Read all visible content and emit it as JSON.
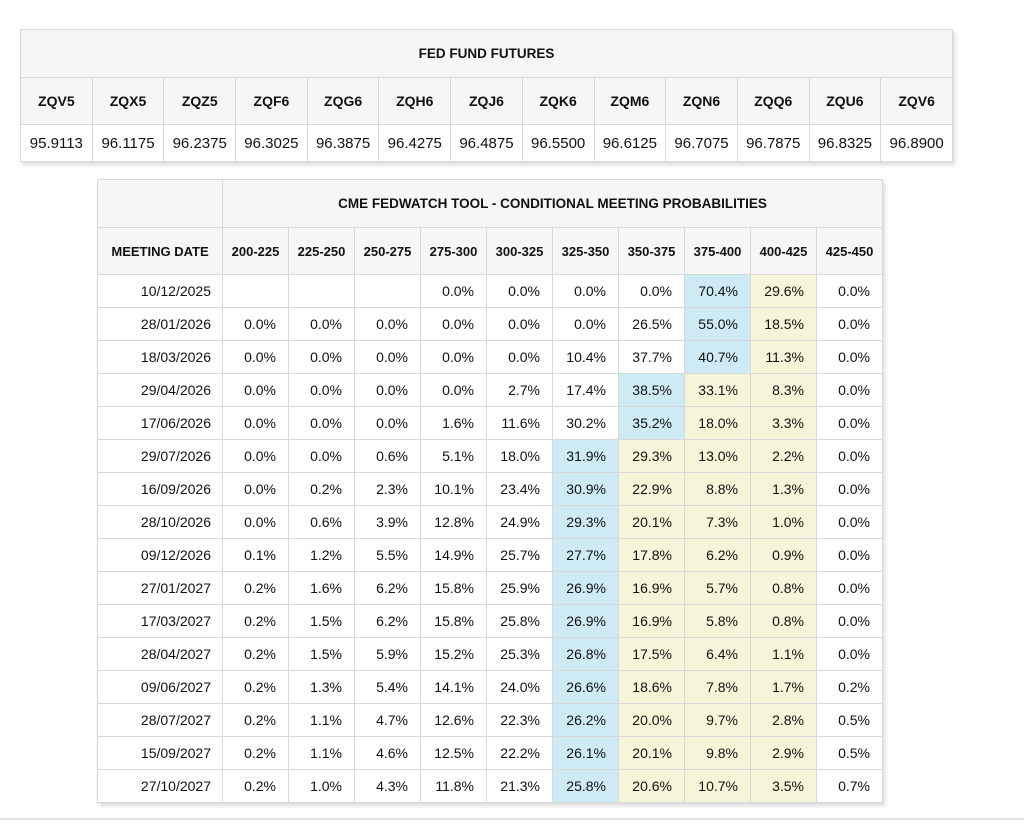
{
  "colors": {
    "header_bg": "#f6f6f6",
    "border": "#d8d8d8",
    "highlight_blue": "#cdeaf5",
    "highlight_yellow": "#f5f5d9"
  },
  "futures_table": {
    "title": "FED FUND FUTURES",
    "columns": [
      "ZQV5",
      "ZQX5",
      "ZQZ5",
      "ZQF6",
      "ZQG6",
      "ZQH6",
      "ZQJ6",
      "ZQK6",
      "ZQM6",
      "ZQN6",
      "ZQQ6",
      "ZQU6",
      "ZQV6"
    ],
    "values": [
      "95.9113",
      "96.1175",
      "96.2375",
      "96.3025",
      "96.3875",
      "96.4275",
      "96.4875",
      "96.5500",
      "96.6125",
      "96.7075",
      "96.7875",
      "96.8325",
      "96.8900"
    ]
  },
  "fedwatch_table": {
    "title": "CME FEDWATCH TOOL - CONDITIONAL MEETING PROBABILITIES",
    "date_header": "MEETING DATE",
    "rate_headers": [
      "200-225",
      "225-250",
      "250-275",
      "275-300",
      "300-325",
      "325-350",
      "350-375",
      "375-400",
      "400-425",
      "425-450"
    ],
    "rows": [
      {
        "date": "10/12/2025",
        "values": [
          "",
          "",
          "",
          "0.0%",
          "0.0%",
          "0.0%",
          "0.0%",
          "70.4%",
          "29.6%",
          "0.0%"
        ],
        "blue": 7,
        "yellow": [
          8
        ]
      },
      {
        "date": "28/01/2026",
        "values": [
          "0.0%",
          "0.0%",
          "0.0%",
          "0.0%",
          "0.0%",
          "0.0%",
          "26.5%",
          "55.0%",
          "18.5%",
          "0.0%"
        ],
        "blue": 7,
        "yellow": [
          8
        ]
      },
      {
        "date": "18/03/2026",
        "values": [
          "0.0%",
          "0.0%",
          "0.0%",
          "0.0%",
          "0.0%",
          "10.4%",
          "37.7%",
          "40.7%",
          "11.3%",
          "0.0%"
        ],
        "blue": 7,
        "yellow": [
          8
        ]
      },
      {
        "date": "29/04/2026",
        "values": [
          "0.0%",
          "0.0%",
          "0.0%",
          "0.0%",
          "2.7%",
          "17.4%",
          "38.5%",
          "33.1%",
          "8.3%",
          "0.0%"
        ],
        "blue": 6,
        "yellow": [
          7,
          8
        ]
      },
      {
        "date": "17/06/2026",
        "values": [
          "0.0%",
          "0.0%",
          "0.0%",
          "1.6%",
          "11.6%",
          "30.2%",
          "35.2%",
          "18.0%",
          "3.3%",
          "0.0%"
        ],
        "blue": 6,
        "yellow": [
          7,
          8
        ]
      },
      {
        "date": "29/07/2026",
        "values": [
          "0.0%",
          "0.0%",
          "0.6%",
          "5.1%",
          "18.0%",
          "31.9%",
          "29.3%",
          "13.0%",
          "2.2%",
          "0.0%"
        ],
        "blue": 5,
        "yellow": [
          6,
          7,
          8
        ]
      },
      {
        "date": "16/09/2026",
        "values": [
          "0.0%",
          "0.2%",
          "2.3%",
          "10.1%",
          "23.4%",
          "30.9%",
          "22.9%",
          "8.8%",
          "1.3%",
          "0.0%"
        ],
        "blue": 5,
        "yellow": [
          6,
          7,
          8
        ]
      },
      {
        "date": "28/10/2026",
        "values": [
          "0.0%",
          "0.6%",
          "3.9%",
          "12.8%",
          "24.9%",
          "29.3%",
          "20.1%",
          "7.3%",
          "1.0%",
          "0.0%"
        ],
        "blue": 5,
        "yellow": [
          6,
          7,
          8
        ]
      },
      {
        "date": "09/12/2026",
        "values": [
          "0.1%",
          "1.2%",
          "5.5%",
          "14.9%",
          "25.7%",
          "27.7%",
          "17.8%",
          "6.2%",
          "0.9%",
          "0.0%"
        ],
        "blue": 5,
        "yellow": [
          6,
          7,
          8
        ]
      },
      {
        "date": "27/01/2027",
        "values": [
          "0.2%",
          "1.6%",
          "6.2%",
          "15.8%",
          "25.9%",
          "26.9%",
          "16.9%",
          "5.7%",
          "0.8%",
          "0.0%"
        ],
        "blue": 5,
        "yellow": [
          6,
          7,
          8
        ]
      },
      {
        "date": "17/03/2027",
        "values": [
          "0.2%",
          "1.5%",
          "6.2%",
          "15.8%",
          "25.8%",
          "26.9%",
          "16.9%",
          "5.8%",
          "0.8%",
          "0.0%"
        ],
        "blue": 5,
        "yellow": [
          6,
          7,
          8
        ]
      },
      {
        "date": "28/04/2027",
        "values": [
          "0.2%",
          "1.5%",
          "5.9%",
          "15.2%",
          "25.3%",
          "26.8%",
          "17.5%",
          "6.4%",
          "1.1%",
          "0.0%"
        ],
        "blue": 5,
        "yellow": [
          6,
          7,
          8
        ]
      },
      {
        "date": "09/06/2027",
        "values": [
          "0.2%",
          "1.3%",
          "5.4%",
          "14.1%",
          "24.0%",
          "26.6%",
          "18.6%",
          "7.8%",
          "1.7%",
          "0.2%"
        ],
        "blue": 5,
        "yellow": [
          6,
          7,
          8
        ]
      },
      {
        "date": "28/07/2027",
        "values": [
          "0.2%",
          "1.1%",
          "4.7%",
          "12.6%",
          "22.3%",
          "26.2%",
          "20.0%",
          "9.7%",
          "2.8%",
          "0.5%"
        ],
        "blue": 5,
        "yellow": [
          6,
          7,
          8
        ]
      },
      {
        "date": "15/09/2027",
        "values": [
          "0.2%",
          "1.1%",
          "4.6%",
          "12.5%",
          "22.2%",
          "26.1%",
          "20.1%",
          "9.8%",
          "2.9%",
          "0.5%"
        ],
        "blue": 5,
        "yellow": [
          6,
          7,
          8
        ]
      },
      {
        "date": "27/10/2027",
        "values": [
          "0.2%",
          "1.0%",
          "4.3%",
          "11.8%",
          "21.3%",
          "25.8%",
          "20.6%",
          "10.7%",
          "3.5%",
          "0.7%"
        ],
        "blue": 5,
        "yellow": [
          6,
          7,
          8
        ]
      }
    ]
  }
}
